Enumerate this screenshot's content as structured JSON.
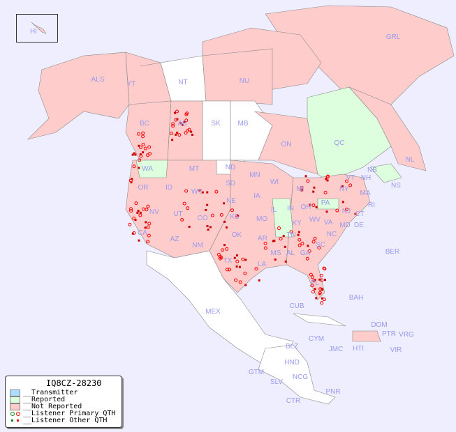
{
  "legend": {
    "title": "IQ8CZ-28230",
    "items": [
      {
        "label": "__Transmitter",
        "color": "#aaddff"
      },
      {
        "label": "__Reported",
        "color": "#ddffdd"
      },
      {
        "label": "__Not Reported",
        "color": "#ffcccc"
      },
      {
        "label": "__Listener Primary QTH"
      },
      {
        "label": "__Listener Other QTH"
      }
    ]
  },
  "colors": {
    "ocean": "#eeeeff",
    "not_reported": "#ffcccc",
    "reported": "#ddffdd",
    "unlisted": "#ffffff",
    "listener": "#ff0000",
    "primary_reported": "#008800"
  },
  "map": {
    "labels": [
      "HI",
      "GRL",
      "ALS",
      "YT",
      "NT",
      "NU",
      "BC",
      "AB",
      "SK",
      "MB",
      "ON",
      "QC",
      "NL",
      "WA",
      "MT",
      "ND",
      "MN",
      "NB",
      "NS",
      "OR",
      "ID",
      "WY",
      "SD",
      "WI",
      "MI",
      "NY",
      "VT",
      "NH",
      "MA",
      "CT",
      "RI",
      "NJ",
      "NE",
      "IA",
      "IL",
      "IN",
      "OH",
      "PA",
      "NV",
      "UT",
      "CO",
      "KS",
      "MO",
      "KY",
      "WV",
      "VA",
      "MD",
      "DE",
      "CA",
      "AZ",
      "NM",
      "OK",
      "AR",
      "TN",
      "NC",
      "SC",
      "GA",
      "AL",
      "MS",
      "LA",
      "TX",
      "FL",
      "BER",
      "MEX",
      "CUB",
      "BAH",
      "DOM",
      "PTR",
      "VRG",
      "CYM",
      "JMC",
      "HTI",
      "VIR",
      "BLZ",
      "HND",
      "GTM",
      "SLV",
      "NCG",
      "CTR",
      "PNR"
    ]
  }
}
